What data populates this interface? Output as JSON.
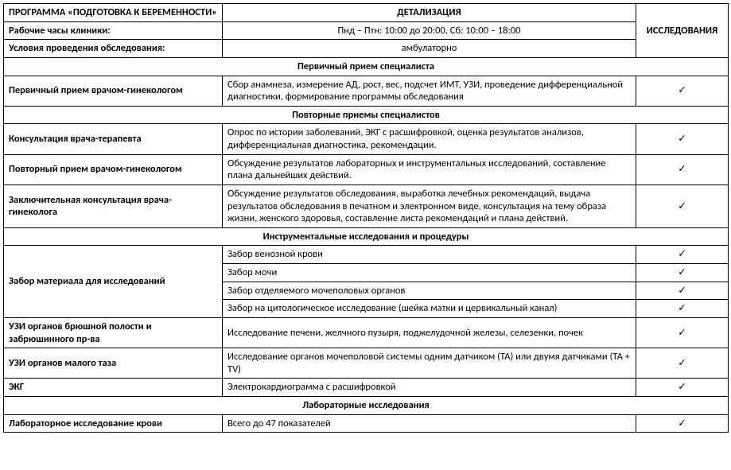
{
  "headers": {
    "program": "ПРОГРАММА «ПОДГОТОВКА К БЕРЕМЕННОСТИ»",
    "detail": "ДЕТАЛИЗАЦИЯ",
    "research": "ИССЛЕДОВАНИЯ"
  },
  "info": {
    "hours_label": "Рабочие часы клиники:",
    "hours_value": "Пнд – Птн: 10:00 до 20:00, Сб: 10:00 – 18:00",
    "cond_label": "Условия проведения обследования:",
    "cond_value": "амбулаторно"
  },
  "check": "✓",
  "s1": {
    "title": "Первичный прием специалиста",
    "r1_name": "Первичный прием врачом-гинекологом",
    "r1_detail": "Сбор анамнеза, измерение АД, рост, вес, подсчет ИМТ, УЗИ, проведение дифференциальной диагностики, формирование программы обследования"
  },
  "s2": {
    "title": "Повторные приемы специалистов",
    "r1_name": "Консультация врача-терапевта",
    "r1_detail": "Опрос по истории заболеваний, ЭКГ с расшифровкой, оценка результатов анализов, дифференциальная диагностика, рекомендации.",
    "r2_name": "Повторный прием врачом-гинекологом",
    "r2_detail": "Обсуждение результатов лабораторных и инструментальных исследований, составление плана дальнейших действий.",
    "r3_name": "Заключительная консультация врача-гинеколога",
    "r3_detail": "Обсуждение результатов обследования, выработка лечебных рекомендаций, выдача результатов обследования в печатном и электронном виде, консультация на тему образа жизни, женского здоровья, составление листа рекомендаций и плана действий."
  },
  "s3": {
    "title": "Инструментальные исследования и процедуры",
    "r1_name": "Забор материала для исследований",
    "r1a": "Забор венозной крови",
    "r1b": "Забор мочи",
    "r1c": "Забор отделяемого мочеполовых органов",
    "r1d": "Забор на цитологическое исследование (шейка матки и цервикальный канал)",
    "r2_name": "УЗИ органов брюшной полости и забрюшинного пр-ва",
    "r2_detail": "Исследование печени, желчного пузыря, поджелудочной железы, селезенки, почек",
    "r3_name": "УЗИ органов малого таза",
    "r3_detail": "Исследование органов мочеполовой системы одним датчиком (ТА) или двумя датчиками (ТА + TV)",
    "r4_name": "ЭКГ",
    "r4_detail": "Электрокардиограмма с расшифровкой"
  },
  "s4": {
    "title": "Лабораторные исследования",
    "r1_name": "Лабораторное исследование крови",
    "r1_detail": "Всего до 47 показателей"
  }
}
